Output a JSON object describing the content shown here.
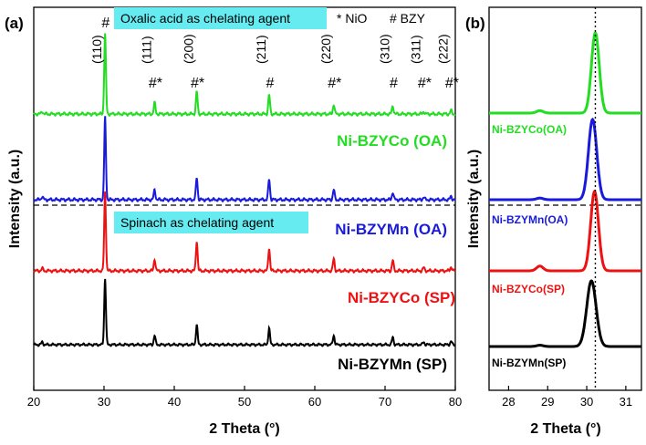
{
  "chart_data": [
    {
      "panel": "(a)",
      "type": "line",
      "xlabel": "2 Theta (°)",
      "ylabel": "Intensity (a.u.)",
      "xlim": [
        20,
        80
      ],
      "xticks": [
        20,
        30,
        40,
        50,
        60,
        70,
        80
      ],
      "yticks": "none",
      "legend": "labels placed beside each trace",
      "annotations": {
        "box_top": "Oxalic acid as chelating agent",
        "box_bottom": "Spinach as chelating agent",
        "key_nio": "* NiO",
        "key_bzy": "# BZY",
        "separator": "dashed"
      },
      "peak_labels": [
        {
          "x": 30.1,
          "hkl": "(110)",
          "marker": "#"
        },
        {
          "x": 37.2,
          "hkl": "(111)",
          "marker": "#*"
        },
        {
          "x": 43.2,
          "hkl": "(200)",
          "marker": "#*"
        },
        {
          "x": 53.5,
          "hkl": "(211)",
          "marker": "#"
        },
        {
          "x": 62.7,
          "hkl": "(220)",
          "marker": "#*"
        },
        {
          "x": 71.1,
          "hkl": "(310)",
          "marker": "#"
        },
        {
          "x": 75.5,
          "hkl": "(311)",
          "marker": "#*"
        },
        {
          "x": 79.4,
          "hkl": "(222)",
          "marker": "#*"
        }
      ],
      "series": [
        {
          "name": "Ni-BZYCo (OA)",
          "color": "#22dd22",
          "peaks": [
            [
              21.2,
              0.03
            ],
            [
              30.15,
              1.0
            ],
            [
              37.2,
              0.14
            ],
            [
              43.2,
              0.28
            ],
            [
              53.5,
              0.24
            ],
            [
              62.7,
              0.12
            ],
            [
              71.1,
              0.1
            ],
            [
              75.5,
              0.03
            ],
            [
              79.4,
              0.04
            ]
          ]
        },
        {
          "name": "Ni-BZYMn (OA)",
          "color": "#1a1adc",
          "peaks": [
            [
              21.2,
              0.04
            ],
            [
              30.15,
              1.0
            ],
            [
              37.2,
              0.12
            ],
            [
              43.2,
              0.27
            ],
            [
              53.5,
              0.25
            ],
            [
              62.7,
              0.12
            ],
            [
              71.1,
              0.09
            ],
            [
              75.5,
              0.03
            ],
            [
              79.4,
              0.04
            ]
          ]
        },
        {
          "name": "Ni-BZYCo (SP)",
          "color": "#ee1111",
          "peaks": [
            [
              21.2,
              0.03
            ],
            [
              30.15,
              1.0
            ],
            [
              37.2,
              0.15
            ],
            [
              43.2,
              0.38
            ],
            [
              53.5,
              0.29
            ],
            [
              62.7,
              0.15
            ],
            [
              71.1,
              0.13
            ],
            [
              75.5,
              0.04
            ],
            [
              79.4,
              0.05
            ]
          ]
        },
        {
          "name": "Ni-BZYMn (SP)",
          "color": "#000000",
          "peaks": [
            [
              21.2,
              0.04
            ],
            [
              30.15,
              1.0
            ],
            [
              37.2,
              0.14
            ],
            [
              43.2,
              0.3
            ],
            [
              53.5,
              0.25
            ],
            [
              62.7,
              0.14
            ],
            [
              71.1,
              0.11
            ],
            [
              75.5,
              0.04
            ],
            [
              79.4,
              0.05
            ]
          ]
        }
      ]
    },
    {
      "panel": "(b)",
      "type": "line",
      "xlabel": "2 Theta (°)",
      "ylabel": "Intensity (a.u.)",
      "xlim": [
        27.5,
        31.4
      ],
      "xticks": [
        28,
        29,
        30,
        31
      ],
      "reference_line_x": 30.22,
      "series": [
        {
          "name": "Ni-BZYCo(OA)",
          "color": "#22dd22",
          "center": 30.22,
          "width": 0.14,
          "height": 1.0,
          "minor": [
            28.8,
            0.03
          ]
        },
        {
          "name": "Ni-BZYMn(OA)",
          "color": "#1a1adc",
          "center": 30.15,
          "width": 0.15,
          "height": 1.0,
          "minor": [
            28.8,
            0.02
          ]
        },
        {
          "name": "Ni-BZYCo(SP)",
          "color": "#ee1111",
          "center": 30.2,
          "width": 0.14,
          "height": 1.0,
          "minor": [
            28.8,
            0.06
          ]
        },
        {
          "name": "Ni-BZYMn(SP)",
          "color": "#000000",
          "center": 30.12,
          "width": 0.17,
          "height": 1.0,
          "minor": [
            28.8,
            0.02
          ]
        }
      ]
    }
  ]
}
